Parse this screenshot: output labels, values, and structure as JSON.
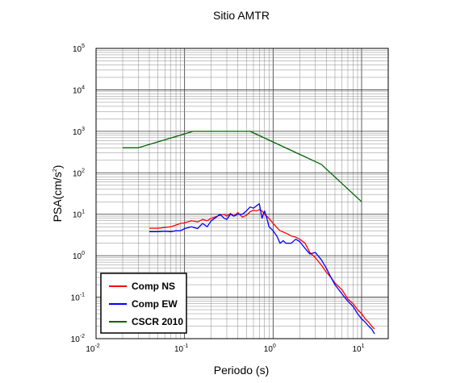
{
  "chart_data": {
    "type": "line",
    "title": "Sitio AMTR",
    "xlabel": "Periodo (s)",
    "ylabel_base": "PSA(cm/s",
    "ylabel_sup": "2",
    "ylabel_tail": ")",
    "x_scale": "log",
    "y_scale": "log",
    "xlim": [
      0.01,
      20
    ],
    "ylim": [
      0.01,
      100000
    ],
    "grid": true,
    "legend_position": "bottom-left",
    "x_ticks": [
      {
        "base": "10",
        "exp": "-2"
      },
      {
        "base": "10",
        "exp": "-1"
      },
      {
        "base": "10",
        "exp": "0"
      },
      {
        "base": "10",
        "exp": "1"
      }
    ],
    "y_ticks": [
      {
        "base": "10",
        "exp": "-2"
      },
      {
        "base": "10",
        "exp": "-1"
      },
      {
        "base": "10",
        "exp": "0"
      },
      {
        "base": "10",
        "exp": "1"
      },
      {
        "base": "10",
        "exp": "2"
      },
      {
        "base": "10",
        "exp": "3"
      },
      {
        "base": "10",
        "exp": "4"
      },
      {
        "base": "10",
        "exp": "5"
      }
    ],
    "series": [
      {
        "name": "Comp NS",
        "color": "#ff0000",
        "x": [
          0.04,
          0.05,
          0.06,
          0.07,
          0.08,
          0.09,
          0.1,
          0.12,
          0.14,
          0.16,
          0.18,
          0.2,
          0.22,
          0.25,
          0.28,
          0.3,
          0.33,
          0.36,
          0.4,
          0.45,
          0.5,
          0.55,
          0.6,
          0.65,
          0.7,
          0.75,
          0.8,
          0.9,
          1.0,
          1.1,
          1.2,
          1.4,
          1.6,
          1.8,
          2.0,
          2.3,
          2.6,
          3.0,
          3.5,
          4.0,
          4.5,
          5.0,
          6.0,
          7.0,
          8.0,
          9.0,
          10.0,
          11.0,
          12.0,
          13.0,
          14.0
        ],
        "y": [
          4.6,
          4.6,
          4.8,
          5.0,
          5.5,
          6.0,
          6.2,
          7.0,
          6.5,
          7.5,
          7.0,
          8.0,
          8.5,
          9.5,
          10.0,
          9.0,
          10.5,
          9.0,
          11.0,
          8.5,
          9.5,
          11.5,
          12.5,
          12.0,
          13.0,
          12.0,
          10.0,
          8.0,
          6.0,
          4.8,
          4.0,
          3.5,
          3.0,
          2.8,
          2.5,
          2.0,
          1.2,
          0.9,
          0.6,
          0.4,
          0.3,
          0.22,
          0.15,
          0.09,
          0.07,
          0.05,
          0.04,
          0.03,
          0.025,
          0.02,
          0.017
        ]
      },
      {
        "name": "Comp EW",
        "color": "#0000ff",
        "x": [
          0.04,
          0.05,
          0.06,
          0.07,
          0.08,
          0.09,
          0.1,
          0.12,
          0.14,
          0.16,
          0.18,
          0.2,
          0.22,
          0.25,
          0.28,
          0.3,
          0.33,
          0.36,
          0.4,
          0.45,
          0.5,
          0.55,
          0.6,
          0.65,
          0.7,
          0.75,
          0.8,
          0.85,
          0.9,
          1.0,
          1.1,
          1.2,
          1.3,
          1.4,
          1.6,
          1.8,
          2.0,
          2.3,
          2.6,
          3.0,
          3.5,
          4.0,
          4.5,
          5.0,
          6.0,
          7.0,
          8.0,
          9.0,
          10.0,
          11.0,
          12.0,
          13.0,
          14.0
        ],
        "y": [
          3.8,
          3.8,
          3.9,
          3.8,
          4.0,
          4.0,
          4.5,
          5.0,
          4.5,
          6.0,
          5.0,
          7.0,
          8.0,
          10.0,
          8.0,
          7.5,
          10.0,
          9.0,
          10.0,
          10.0,
          12.0,
          15.0,
          14.0,
          16.0,
          18.0,
          8.0,
          12.0,
          8.0,
          5.0,
          4.0,
          3.0,
          2.0,
          2.3,
          2.0,
          2.0,
          2.5,
          2.2,
          1.5,
          1.1,
          1.2,
          0.8,
          0.5,
          0.3,
          0.2,
          0.12,
          0.08,
          0.06,
          0.04,
          0.03,
          0.025,
          0.02,
          0.017,
          0.013
        ]
      },
      {
        "name": "CSCR 2010",
        "color": "#006400",
        "x": [
          0.02,
          0.03,
          0.125,
          0.55,
          3.5,
          10.0
        ],
        "y": [
          400,
          400,
          1000,
          1000,
          160,
          20
        ]
      }
    ]
  }
}
